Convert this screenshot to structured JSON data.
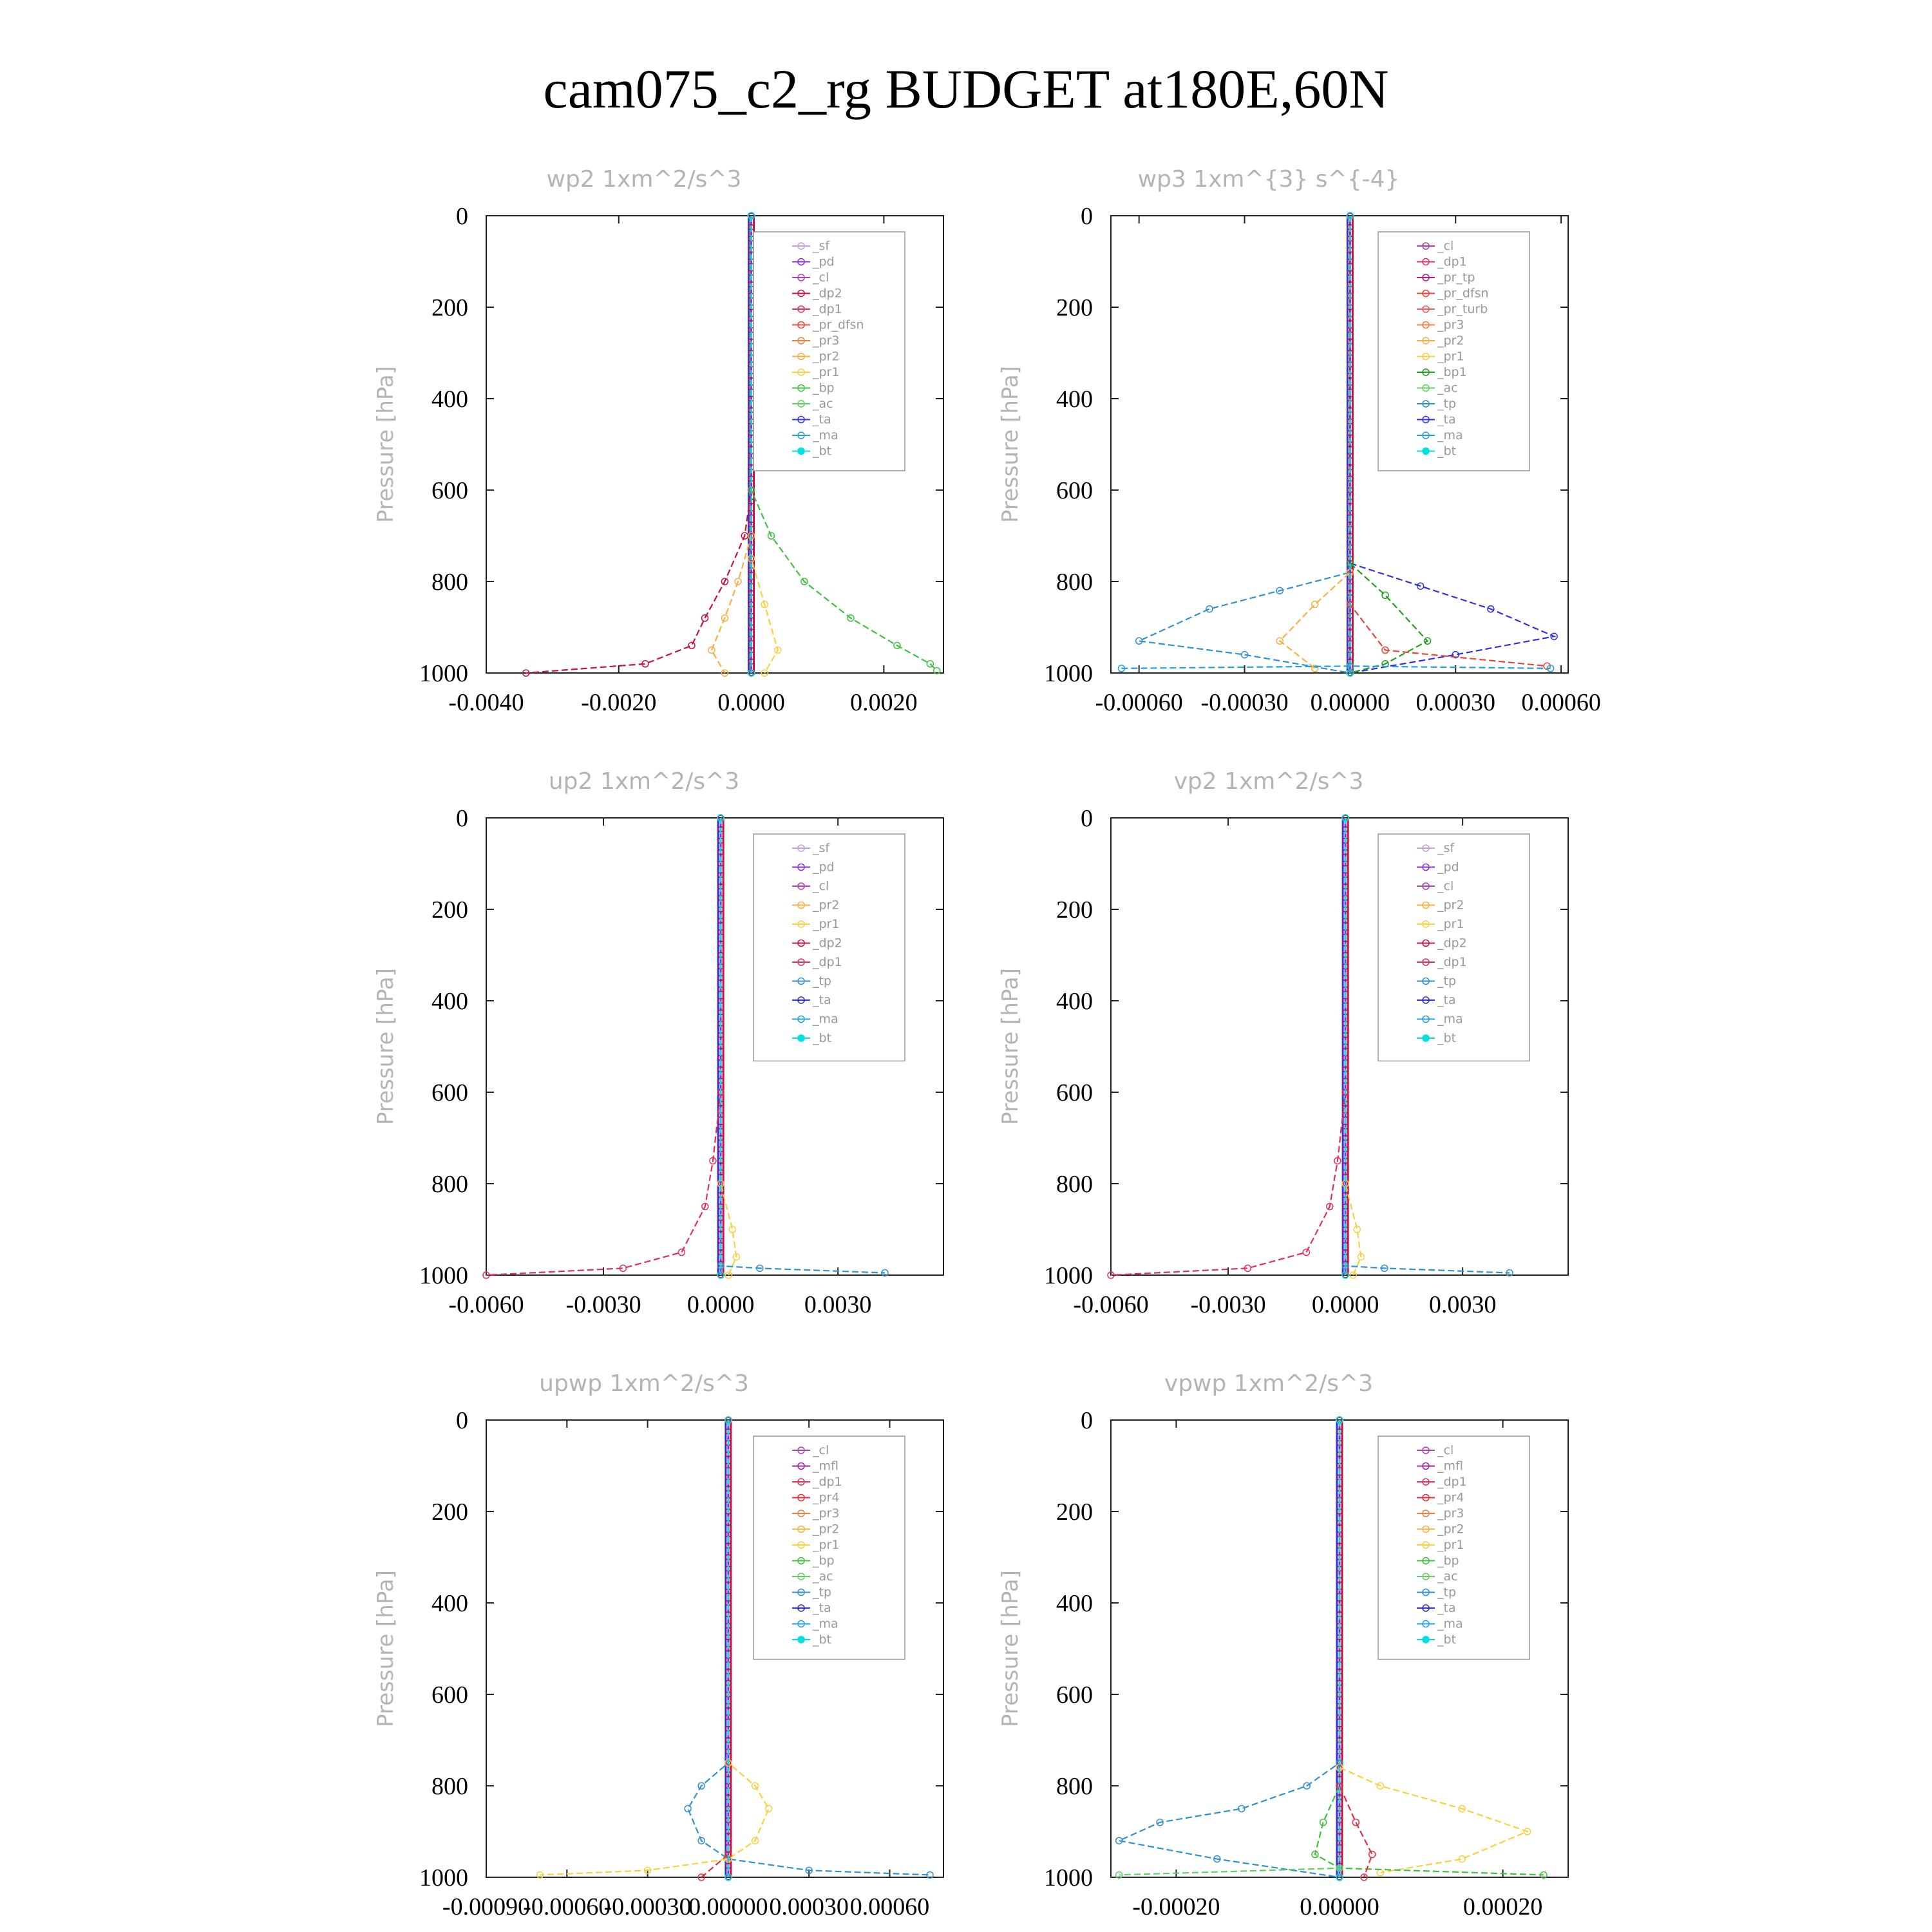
{
  "title": "cam075_c2_rg  BUDGET at180E,60N",
  "colors": {
    "sf": "#c9a0dc",
    "pd": "#8a2be2",
    "cl": "#b03fb0",
    "mfl": "#a020a0",
    "dp2": "#c8103c",
    "dp1": "#e0305a",
    "pr4": "#e03040",
    "pr_tp": "#b02080",
    "pr_dfsn": "#e8443a",
    "pr_turb": "#f0605a",
    "pr3": "#f08040",
    "pr2": "#f5b040",
    "pr1": "#f8d040",
    "bp": "#40c040",
    "bp1": "#20a020",
    "ac": "#60d060",
    "tp": "#3090d0",
    "ta": "#3030e0",
    "ma": "#20a0e0",
    "bt": "#00e0e0"
  },
  "chart_data": [
    {
      "type": "line",
      "title": "wp2  1xm^2/s^3",
      "ylabel": "Pressure [hPa]",
      "xlim": [
        -0.004,
        0.0029
      ],
      "ylim": [
        1000,
        0
      ],
      "xticks": [
        -0.004,
        -0.002,
        0.0,
        0.002
      ],
      "xtick_labels": [
        "-0.0040",
        "-0.0020",
        "0.0000",
        "0.0020"
      ],
      "yticks": [
        0,
        200,
        400,
        600,
        800,
        1000
      ],
      "ytick_labels": [
        "0",
        "200",
        "400",
        "600",
        "800",
        "1000"
      ],
      "legend_position": "top-right",
      "legend": [
        "_sf",
        "_pd",
        "_cl",
        "_dp2",
        "_dp1",
        "_pr_dfsn",
        "_pr3",
        "_pr2",
        "_pr1",
        "_bp",
        "_ac",
        "_ta",
        "_ma",
        "_bt"
      ],
      "series": [
        {
          "name": "_dp2",
          "color_key": "dp2",
          "points": [
            [
              0,
              0
            ],
            [
              0,
              600
            ],
            [
              -0.0001,
              700
            ],
            [
              -0.0004,
              800
            ],
            [
              -0.0007,
              880
            ],
            [
              -0.0009,
              940
            ],
            [
              -0.0016,
              980
            ],
            [
              -0.0034,
              1000
            ]
          ]
        },
        {
          "name": "_pr2",
          "color_key": "pr2",
          "points": [
            [
              0,
              0
            ],
            [
              0,
              700
            ],
            [
              -0.0002,
              800
            ],
            [
              -0.0004,
              880
            ],
            [
              -0.0006,
              950
            ],
            [
              -0.0004,
              1000
            ]
          ]
        },
        {
          "name": "_pr1",
          "color_key": "pr1",
          "points": [
            [
              0,
              0
            ],
            [
              0,
              750
            ],
            [
              0.0002,
              850
            ],
            [
              0.0004,
              950
            ],
            [
              0.0002,
              1000
            ]
          ]
        },
        {
          "name": "_bp",
          "color_key": "bp",
          "points": [
            [
              0,
              0
            ],
            [
              0,
              600
            ],
            [
              0.0003,
              700
            ],
            [
              0.0008,
              800
            ],
            [
              0.0015,
              880
            ],
            [
              0.0022,
              940
            ],
            [
              0.0027,
              980
            ],
            [
              0.0028,
              995
            ]
          ]
        },
        {
          "name": "_ta",
          "color_key": "ta",
          "points": [
            [
              0,
              0
            ],
            [
              0,
              1000
            ]
          ]
        },
        {
          "name": "_bt",
          "color_key": "bt",
          "points": [
            [
              0,
              0
            ],
            [
              0,
              1000
            ]
          ]
        }
      ]
    },
    {
      "type": "line",
      "title": "wp3  1xm^{3} s^{-4}",
      "ylabel": "Pressure [hPa]",
      "xlim": [
        -0.00068,
        0.00062
      ],
      "ylim": [
        1000,
        0
      ],
      "xticks": [
        -0.0006,
        -0.0003,
        0.0,
        0.0003,
        0.0006
      ],
      "xtick_labels": [
        "-0.00060",
        "-0.00030",
        "0.00000",
        "0.00030",
        "0.00060"
      ],
      "yticks": [
        0,
        200,
        400,
        600,
        800,
        1000
      ],
      "ytick_labels": [
        "0",
        "200",
        "400",
        "600",
        "800",
        "1000"
      ],
      "legend_position": "top-right",
      "legend": [
        "_cl",
        "_dp1",
        "_pr_tp",
        "_pr_dfsn",
        "_pr_turb",
        "_pr3",
        "_pr2",
        "_pr1",
        "_bp1",
        "_ac",
        "_tp",
        "_ta",
        "_ma",
        "_bt"
      ],
      "series": [
        {
          "name": "_tp",
          "color_key": "tp",
          "points": [
            [
              0,
              0
            ],
            [
              0,
              780
            ],
            [
              -0.0002,
              820
            ],
            [
              -0.0004,
              860
            ],
            [
              -0.0006,
              930
            ],
            [
              -0.0003,
              960
            ],
            [
              0,
              1000
            ]
          ]
        },
        {
          "name": "_ta",
          "color_key": "ta",
          "points": [
            [
              0,
              0
            ],
            [
              0,
              760
            ],
            [
              0.0002,
              810
            ],
            [
              0.0004,
              860
            ],
            [
              0.00058,
              920
            ],
            [
              0.0003,
              960
            ],
            [
              0,
              1000
            ]
          ]
        },
        {
          "name": "_bp1",
          "color_key": "bp1",
          "points": [
            [
              0,
              0
            ],
            [
              0,
              760
            ],
            [
              0.0001,
              830
            ],
            [
              0.00022,
              930
            ],
            [
              0.0001,
              980
            ],
            [
              0,
              1000
            ]
          ]
        },
        {
          "name": "_pr2",
          "color_key": "pr2",
          "points": [
            [
              0,
              0
            ],
            [
              0,
              780
            ],
            [
              -0.0001,
              850
            ],
            [
              -0.0002,
              930
            ],
            [
              -0.0001,
              990
            ]
          ]
        },
        {
          "name": "_pr_dfsn",
          "color_key": "pr_dfsn",
          "points": [
            [
              0,
              0
            ],
            [
              0,
              850
            ],
            [
              0.0001,
              950
            ],
            [
              0.00056,
              985
            ]
          ]
        },
        {
          "name": "_ma",
          "color_key": "ma",
          "points": [
            [
              -0.00065,
              990
            ],
            [
              0,
              985
            ],
            [
              0.00057,
              990
            ]
          ]
        },
        {
          "name": "_bt",
          "color_key": "bt",
          "points": [
            [
              0,
              0
            ],
            [
              0,
              1000
            ]
          ]
        }
      ]
    },
    {
      "type": "line",
      "title": "up2  1xm^2/s^3",
      "ylabel": "Pressure [hPa]",
      "xlim": [
        -0.006,
        0.0057
      ],
      "ylim": [
        1000,
        0
      ],
      "xticks": [
        -0.006,
        -0.003,
        0.0,
        0.003
      ],
      "xtick_labels": [
        "-0.0060",
        "-0.0030",
        "0.0000",
        "0.0030"
      ],
      "yticks": [
        0,
        200,
        400,
        600,
        800,
        1000
      ],
      "ytick_labels": [
        "0",
        "200",
        "400",
        "600",
        "800",
        "1000"
      ],
      "legend_position": "top-right",
      "legend": [
        "_sf",
        "_pd",
        "_cl",
        "_pr2",
        "_pr1",
        "_dp2",
        "_dp1",
        "_tp",
        "_ta",
        "_ma",
        "_bt"
      ],
      "series": [
        {
          "name": "_dp1",
          "color_key": "dp1",
          "points": [
            [
              0,
              0
            ],
            [
              0,
              600
            ],
            [
              -0.0002,
              750
            ],
            [
              -0.0004,
              850
            ],
            [
              -0.001,
              950
            ],
            [
              -0.0025,
              985
            ],
            [
              -0.006,
              1000
            ]
          ]
        },
        {
          "name": "_pr1",
          "color_key": "pr1",
          "points": [
            [
              0,
              0
            ],
            [
              0,
              800
            ],
            [
              0.0003,
              900
            ],
            [
              0.0004,
              960
            ],
            [
              0.0002,
              1000
            ]
          ]
        },
        {
          "name": "_tp",
          "color_key": "tp",
          "points": [
            [
              0,
              0
            ],
            [
              0,
              980
            ],
            [
              0.001,
              985
            ],
            [
              0.0042,
              995
            ]
          ]
        },
        {
          "name": "_bt",
          "color_key": "bt",
          "points": [
            [
              0,
              0
            ],
            [
              0,
              1000
            ]
          ]
        }
      ]
    },
    {
      "type": "line",
      "title": "vp2  1xm^2/s^3",
      "ylabel": "Pressure [hPa]",
      "xlim": [
        -0.006,
        0.0057
      ],
      "ylim": [
        1000,
        0
      ],
      "xticks": [
        -0.006,
        -0.003,
        0.0,
        0.003
      ],
      "xtick_labels": [
        "-0.0060",
        "-0.0030",
        "0.0000",
        "0.0030"
      ],
      "yticks": [
        0,
        200,
        400,
        600,
        800,
        1000
      ],
      "ytick_labels": [
        "0",
        "200",
        "400",
        "600",
        "800",
        "1000"
      ],
      "legend_position": "top-right",
      "legend": [
        "_sf",
        "_pd",
        "_cl",
        "_pr2",
        "_pr1",
        "_dp2",
        "_dp1",
        "_tp",
        "_ta",
        "_ma",
        "_bt"
      ],
      "series": [
        {
          "name": "_dp1",
          "color_key": "dp1",
          "points": [
            [
              0,
              0
            ],
            [
              0,
              600
            ],
            [
              -0.0002,
              750
            ],
            [
              -0.0004,
              850
            ],
            [
              -0.001,
              950
            ],
            [
              -0.0025,
              985
            ],
            [
              -0.006,
              1000
            ]
          ]
        },
        {
          "name": "_pr1",
          "color_key": "pr1",
          "points": [
            [
              0,
              0
            ],
            [
              0,
              800
            ],
            [
              0.0003,
              900
            ],
            [
              0.0004,
              960
            ],
            [
              0.0002,
              1000
            ]
          ]
        },
        {
          "name": "_tp",
          "color_key": "tp",
          "points": [
            [
              0,
              0
            ],
            [
              0,
              980
            ],
            [
              0.001,
              985
            ],
            [
              0.0042,
              995
            ]
          ]
        },
        {
          "name": "_bt",
          "color_key": "bt",
          "points": [
            [
              0,
              0
            ],
            [
              0,
              1000
            ]
          ]
        }
      ]
    },
    {
      "type": "line",
      "title": "upwp  1xm^2/s^3",
      "ylabel": "Pressure [hPa]",
      "xlim": [
        -0.0009,
        0.0008
      ],
      "ylim": [
        1000,
        0
      ],
      "xticks": [
        -0.0009,
        -0.0006,
        -0.0003,
        0.0,
        0.0003,
        0.0006
      ],
      "xtick_labels": [
        "-0.00090",
        "-0.00060",
        "-0.00030",
        "0.00000",
        "0.00030",
        "0.00060"
      ],
      "yticks": [
        0,
        200,
        400,
        600,
        800,
        1000
      ],
      "ytick_labels": [
        "0",
        "200",
        "400",
        "600",
        "800",
        "1000"
      ],
      "legend_position": "top-right",
      "legend": [
        "_cl",
        "_mfl",
        "_dp1",
        "_pr4",
        "_pr3",
        "_pr2",
        "_pr1",
        "_bp",
        "_ac",
        "_tp",
        "_ta",
        "_ma",
        "_bt"
      ],
      "series": [
        {
          "name": "_tp",
          "color_key": "tp",
          "points": [
            [
              0,
              0
            ],
            [
              0,
              750
            ],
            [
              -0.0001,
              800
            ],
            [
              -0.00015,
              850
            ],
            [
              -0.0001,
              920
            ],
            [
              0,
              960
            ],
            [
              0.0003,
              985
            ],
            [
              0.00075,
              995
            ]
          ]
        },
        {
          "name": "_pr1",
          "color_key": "pr1",
          "points": [
            [
              0,
              0
            ],
            [
              0,
              750
            ],
            [
              0.0001,
              800
            ],
            [
              0.00015,
              850
            ],
            [
              0.0001,
              920
            ],
            [
              0,
              960
            ],
            [
              -0.0003,
              985
            ],
            [
              -0.0007,
              995
            ]
          ]
        },
        {
          "name": "_pr4",
          "color_key": "pr4",
          "points": [
            [
              0,
              0
            ],
            [
              0,
              950
            ],
            [
              -0.0001,
              1000
            ]
          ]
        },
        {
          "name": "_bt",
          "color_key": "bt",
          "points": [
            [
              0,
              0
            ],
            [
              0,
              1000
            ]
          ]
        }
      ]
    },
    {
      "type": "line",
      "title": "vpwp  1xm^2/s^3",
      "ylabel": "Pressure [hPa]",
      "xlim": [
        -0.00028,
        0.00028
      ],
      "ylim": [
        1000,
        0
      ],
      "xticks": [
        -0.0002,
        0.0,
        0.0002
      ],
      "xtick_labels": [
        "-0.00020",
        "0.00000",
        "0.00020"
      ],
      "yticks": [
        0,
        200,
        400,
        600,
        800,
        1000
      ],
      "ytick_labels": [
        "0",
        "200",
        "400",
        "600",
        "800",
        "1000"
      ],
      "legend_position": "top-right",
      "legend": [
        "_cl",
        "_mfl",
        "_dp1",
        "_pr4",
        "_pr3",
        "_pr2",
        "_pr1",
        "_bp",
        "_ac",
        "_tp",
        "_ta",
        "_ma",
        "_bt"
      ],
      "series": [
        {
          "name": "_tp",
          "color_key": "tp",
          "points": [
            [
              0,
              0
            ],
            [
              0,
              750
            ],
            [
              -4e-05,
              800
            ],
            [
              -0.00012,
              850
            ],
            [
              -0.00022,
              880
            ],
            [
              -0.00027,
              920
            ],
            [
              -0.00015,
              960
            ],
            [
              0,
              1000
            ]
          ]
        },
        {
          "name": "_pr1",
          "color_key": "pr1",
          "points": [
            [
              0,
              0
            ],
            [
              0,
              760
            ],
            [
              5e-05,
              800
            ],
            [
              0.00015,
              850
            ],
            [
              0.00023,
              900
            ],
            [
              0.00015,
              960
            ],
            [
              5e-05,
              990
            ]
          ]
        },
        {
          "name": "_bp",
          "color_key": "bp",
          "points": [
            [
              0,
              0
            ],
            [
              0,
              800
            ],
            [
              -2e-05,
              880
            ],
            [
              -3e-05,
              950
            ],
            [
              0,
              980
            ],
            [
              0.00025,
              995
            ]
          ]
        },
        {
          "name": "_pr4",
          "color_key": "pr4",
          "points": [
            [
              0,
              0
            ],
            [
              0,
              800
            ],
            [
              2e-05,
              880
            ],
            [
              4e-05,
              950
            ],
            [
              3e-05,
              1000
            ]
          ]
        },
        {
          "name": "_ac",
          "color_key": "ac",
          "points": [
            [
              0,
              0
            ],
            [
              0,
              980
            ],
            [
              -0.00027,
              995
            ]
          ]
        },
        {
          "name": "_bt",
          "color_key": "bt",
          "points": [
            [
              0,
              0
            ],
            [
              0,
              1000
            ]
          ]
        }
      ]
    }
  ]
}
